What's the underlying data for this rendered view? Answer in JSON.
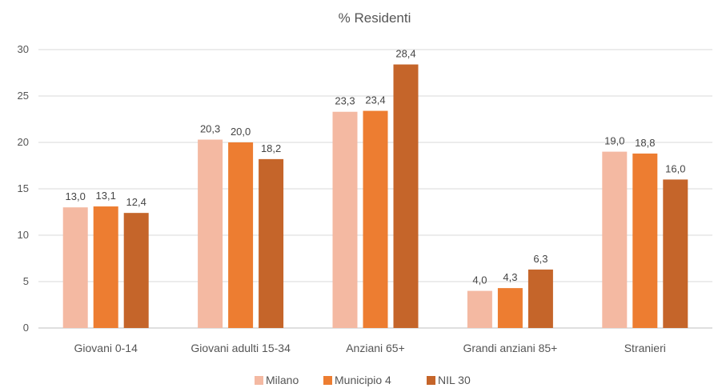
{
  "chart_data": {
    "type": "bar",
    "title": "% Residenti",
    "xlabel": "",
    "ylabel": "",
    "ylim": [
      0,
      30
    ],
    "yticks": [
      0,
      5,
      10,
      15,
      20,
      25,
      30
    ],
    "grid": true,
    "legend_position": "bottom",
    "categories": [
      "Giovani 0-14",
      "Giovani adulti  15-34",
      "Anziani 65+",
      "Grandi anziani  85+",
      "Stranieri"
    ],
    "series": [
      {
        "name": "Milano",
        "color": "#f4b9a2",
        "values": [
          13.0,
          20.3,
          23.3,
          4.0,
          19.0
        ],
        "labels": [
          "13,0",
          "20,3",
          "23,3",
          "4,0",
          "19,0"
        ]
      },
      {
        "name": "Municipio 4",
        "color": "#ed7d31",
        "values": [
          13.1,
          20.0,
          23.4,
          4.3,
          18.8
        ],
        "labels": [
          "13,1",
          "20,0",
          "23,4",
          "4,3",
          "18,8"
        ]
      },
      {
        "name": "NIL 30",
        "color": "#c5652a",
        "values": [
          12.4,
          18.2,
          28.4,
          6.3,
          16.0
        ],
        "labels": [
          "12,4",
          "18,2",
          "28,4",
          "6,3",
          "16,0"
        ]
      }
    ]
  }
}
